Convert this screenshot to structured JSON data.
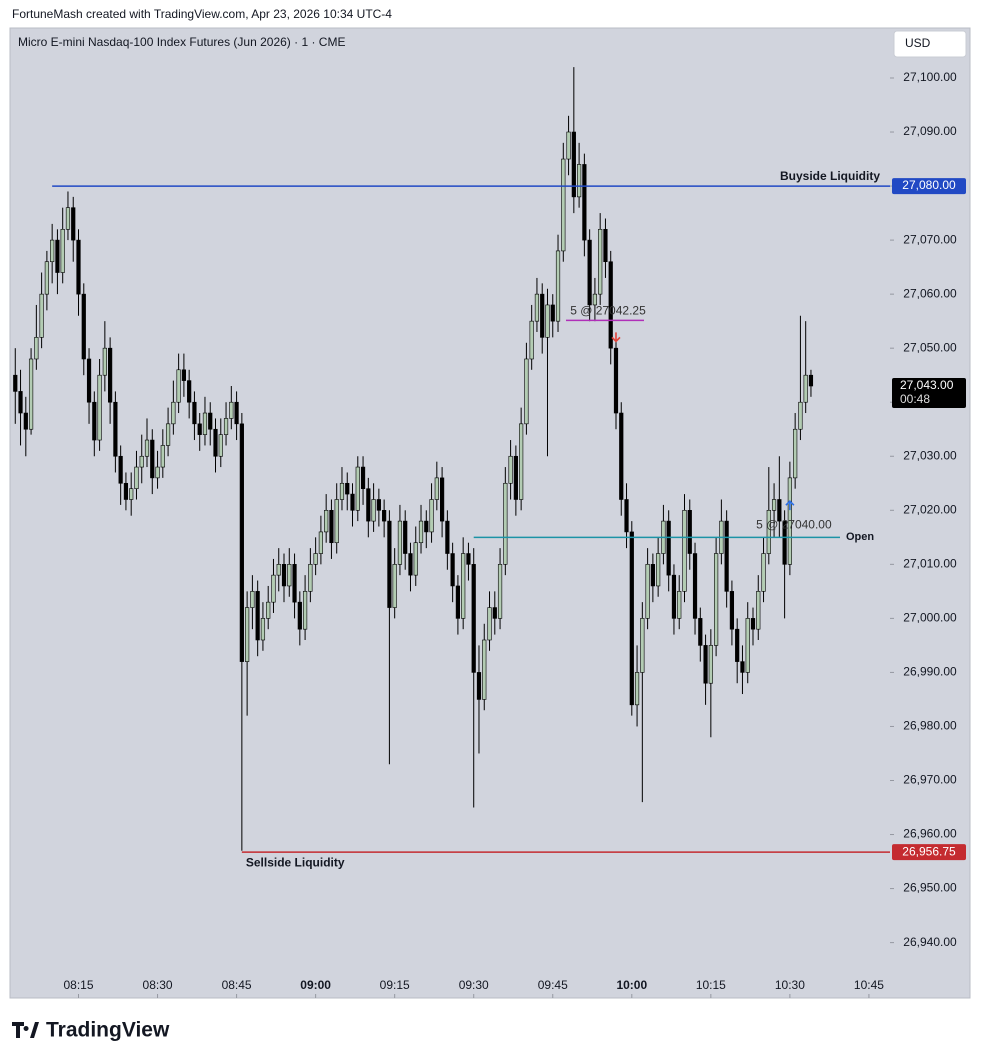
{
  "header": {
    "attribution": "FortuneMash created with TradingView.com, Apr 23, 2026 10:34 UTC-4",
    "logo": "TradingView"
  },
  "chart_data": {
    "type": "candlestick",
    "title": "Micro E-mini Nasdaq-100 Index Futures (Jun 2026) · 1 · CME",
    "currency": "USD",
    "up_color": "#b3ccb3",
    "down_color": "#000000",
    "ylim": [
      26929.75,
      27109.25
    ],
    "yticks": [
      {
        "value": 26940,
        "label": "26,940.00"
      },
      {
        "value": 26950,
        "label": "26,950.00"
      },
      {
        "value": 26960,
        "label": "26,960.00"
      },
      {
        "value": 26970,
        "label": "26,970.00"
      },
      {
        "value": 26980,
        "label": "26,980.00"
      },
      {
        "value": 26990,
        "label": "26,990.00"
      },
      {
        "value": 27000,
        "label": "27,000.00"
      },
      {
        "value": 27010,
        "label": "27,010.00"
      },
      {
        "value": 27020,
        "label": "27,020.00"
      },
      {
        "value": 27030,
        "label": "27,030.00"
      },
      {
        "value": 27040,
        "label": "27,040.00"
      },
      {
        "value": 27050,
        "label": "27,050.00"
      },
      {
        "value": 27060,
        "label": "27,060.00"
      },
      {
        "value": 27070,
        "label": "27,070.00"
      },
      {
        "value": 27080,
        "label": "27,080.00"
      },
      {
        "value": 27090,
        "label": "27,090.00"
      },
      {
        "value": 27100,
        "label": "27,100.00"
      }
    ],
    "xlim": [
      "08:02",
      "10:49"
    ],
    "xticks": [
      "08:15",
      "08:30",
      "08:45",
      "09:00",
      "09:15",
      "09:30",
      "09:45",
      "10:00",
      "10:15",
      "10:30",
      "10:45"
    ],
    "x": [
      "08:03",
      "08:04",
      "08:05",
      "08:06",
      "08:07",
      "08:08",
      "08:09",
      "08:10",
      "08:11",
      "08:12",
      "08:13",
      "08:14",
      "08:15",
      "08:16",
      "08:17",
      "08:18",
      "08:19",
      "08:20",
      "08:21",
      "08:22",
      "08:23",
      "08:24",
      "08:25",
      "08:26",
      "08:27",
      "08:28",
      "08:29",
      "08:30",
      "08:31",
      "08:32",
      "08:33",
      "08:34",
      "08:35",
      "08:36",
      "08:37",
      "08:38",
      "08:39",
      "08:40",
      "08:41",
      "08:42",
      "08:43",
      "08:44",
      "08:45",
      "08:46",
      "08:47",
      "08:48",
      "08:49",
      "08:50",
      "08:51",
      "08:52",
      "08:53",
      "08:54",
      "08:55",
      "08:56",
      "08:57",
      "08:58",
      "08:59",
      "09:00",
      "09:01",
      "09:02",
      "09:03",
      "09:04",
      "09:05",
      "09:06",
      "09:07",
      "09:08",
      "09:09",
      "09:10",
      "09:11",
      "09:12",
      "09:13",
      "09:14",
      "09:15",
      "09:16",
      "09:17",
      "09:18",
      "09:19",
      "09:20",
      "09:21",
      "09:22",
      "09:23",
      "09:24",
      "09:25",
      "09:26",
      "09:27",
      "09:28",
      "09:29",
      "09:30",
      "09:31",
      "09:32",
      "09:33",
      "09:34",
      "09:35",
      "09:36",
      "09:37",
      "09:38",
      "09:39",
      "09:40",
      "09:41",
      "09:42",
      "09:43",
      "09:44",
      "09:45",
      "09:46",
      "09:47",
      "09:48",
      "09:49",
      "09:50",
      "09:51",
      "09:52",
      "09:53",
      "09:54",
      "09:55",
      "09:56",
      "09:57",
      "09:58",
      "09:59",
      "10:00",
      "10:01",
      "10:02",
      "10:03",
      "10:04",
      "10:05",
      "10:06",
      "10:07",
      "10:08",
      "10:09",
      "10:10",
      "10:11",
      "10:12",
      "10:13",
      "10:14",
      "10:15",
      "10:16",
      "10:17",
      "10:18",
      "10:19",
      "10:20",
      "10:21",
      "10:22",
      "10:23",
      "10:24",
      "10:25",
      "10:26",
      "10:27",
      "10:28",
      "10:29",
      "10:30",
      "10:31",
      "10:32",
      "10:33",
      "10:34"
    ],
    "ohlc": [
      [
        27045,
        27050,
        27036,
        27042
      ],
      [
        27042,
        27046,
        27032,
        27038
      ],
      [
        27038,
        27041,
        27030,
        27035
      ],
      [
        27035,
        27050,
        27034,
        27048
      ],
      [
        27048,
        27058,
        27046,
        27052
      ],
      [
        27052,
        27064,
        27050,
        27060
      ],
      [
        27060,
        27068,
        27057,
        27066
      ],
      [
        27066,
        27073,
        27062,
        27070
      ],
      [
        27070,
        27072,
        27060,
        27064
      ],
      [
        27064,
        27076,
        27062,
        27072
      ],
      [
        27072,
        27079,
        27070,
        27076
      ],
      [
        27076,
        27078,
        27066,
        27070
      ],
      [
        27070,
        27072,
        27056,
        27060
      ],
      [
        27060,
        27062,
        27045,
        27048
      ],
      [
        27048,
        27050,
        27036,
        27040
      ],
      [
        27040,
        27042,
        27030,
        27033
      ],
      [
        27033,
        27048,
        27031,
        27045
      ],
      [
        27045,
        27055,
        27042,
        27050
      ],
      [
        27050,
        27052,
        27036,
        27040
      ],
      [
        27040,
        27042,
        27027,
        27030
      ],
      [
        27030,
        27032,
        27021,
        27025
      ],
      [
        27025,
        27027,
        27020,
        27022
      ],
      [
        27022,
        27027,
        27019,
        27024
      ],
      [
        27024,
        27031,
        27022,
        27028
      ],
      [
        27028,
        27034,
        27025,
        27030
      ],
      [
        27030,
        27037,
        27028,
        27033
      ],
      [
        27033,
        27035,
        27023,
        27026
      ],
      [
        27026,
        27031,
        27024,
        27028
      ],
      [
        27028,
        27035,
        27026,
        27032
      ],
      [
        27032,
        27039,
        27030,
        27036
      ],
      [
        27036,
        27044,
        27034,
        27040
      ],
      [
        27040,
        27049,
        27038,
        27046
      ],
      [
        27046,
        27049,
        27041,
        27044
      ],
      [
        27044,
        27046,
        27037,
        27040
      ],
      [
        27040,
        27042,
        27033,
        27036
      ],
      [
        27036,
        27038,
        27031,
        27034
      ],
      [
        27034,
        27041,
        27032,
        27038
      ],
      [
        27038,
        27040,
        27032,
        27035
      ],
      [
        27035,
        27037,
        27027,
        27030
      ],
      [
        27030,
        27037,
        27028,
        27034
      ],
      [
        27034,
        27040,
        27032,
        27037
      ],
      [
        27037,
        27043,
        27035,
        27040
      ],
      [
        27040,
        27042,
        27033,
        27036
      ],
      [
        27036,
        27038,
        26957,
        26992
      ],
      [
        26992,
        27005,
        26982,
        27002
      ],
      [
        27002,
        27008,
        26998,
        27005
      ],
      [
        27005,
        27007,
        26993,
        26996
      ],
      [
        26996,
        27003,
        26994,
        27000
      ],
      [
        27000,
        27006,
        26998,
        27003
      ],
      [
        27003,
        27011,
        27001,
        27008
      ],
      [
        27008,
        27013,
        27005,
        27010
      ],
      [
        27010,
        27012,
        27003,
        27006
      ],
      [
        27006,
        27013,
        27004,
        27010
      ],
      [
        27010,
        27012,
        27000,
        27003
      ],
      [
        27003,
        27005,
        26995,
        26998
      ],
      [
        26998,
        27008,
        26996,
        27005
      ],
      [
        27005,
        27013,
        27003,
        27010
      ],
      [
        27010,
        27015,
        27008,
        27012
      ],
      [
        27012,
        27019,
        27010,
        27016
      ],
      [
        27016,
        27023,
        27014,
        27020
      ],
      [
        27020,
        27022,
        27011,
        27014
      ],
      [
        27014,
        27025,
        27012,
        27022
      ],
      [
        27022,
        27028,
        27020,
        27025
      ],
      [
        27025,
        27027,
        27020,
        27023
      ],
      [
        27023,
        27025,
        27017,
        27020
      ],
      [
        27020,
        27030,
        27018,
        27028
      ],
      [
        27028,
        27030,
        27021,
        27024
      ],
      [
        27024,
        27026,
        27015,
        27018
      ],
      [
        27018,
        27025,
        27016,
        27022
      ],
      [
        27022,
        27024,
        27017,
        27020
      ],
      [
        27020,
        27022,
        27015,
        27018
      ],
      [
        27018,
        27020,
        26973,
        27002
      ],
      [
        27002,
        27013,
        27000,
        27010
      ],
      [
        27010,
        27021,
        27008,
        27018
      ],
      [
        27018,
        27020,
        27009,
        27012
      ],
      [
        27012,
        27014,
        27005,
        27008
      ],
      [
        27008,
        27017,
        27006,
        27014
      ],
      [
        27014,
        27021,
        27012,
        27018
      ],
      [
        27018,
        27020,
        27013,
        27016
      ],
      [
        27016,
        27025,
        27014,
        27022
      ],
      [
        27022,
        27029,
        27020,
        27026
      ],
      [
        27026,
        27028,
        27015,
        27018
      ],
      [
        27018,
        27020,
        27009,
        27012
      ],
      [
        27012,
        27014,
        27003,
        27006
      ],
      [
        27006,
        27008,
        26997,
        27000
      ],
      [
        27000,
        27015,
        26998,
        27012
      ],
      [
        27012,
        27014,
        27007,
        27010
      ],
      [
        27010,
        27013,
        26965,
        26990
      ],
      [
        26990,
        26995,
        26975,
        26985
      ],
      [
        26985,
        26999,
        26983,
        26996
      ],
      [
        26996,
        27005,
        26994,
        27002
      ],
      [
        27002,
        27005,
        26997,
        27000
      ],
      [
        27000,
        27013,
        26998,
        27010
      ],
      [
        27010,
        27028,
        27008,
        27025
      ],
      [
        27025,
        27033,
        27022,
        27030
      ],
      [
        27030,
        27032,
        27019,
        27022
      ],
      [
        27022,
        27039,
        27020,
        27036
      ],
      [
        27036,
        27051,
        27034,
        27048
      ],
      [
        27048,
        27058,
        27046,
        27055
      ],
      [
        27055,
        27063,
        27053,
        27060
      ],
      [
        27060,
        27062,
        27049,
        27052
      ],
      [
        27052,
        27061,
        27030,
        27058
      ],
      [
        27058,
        27060,
        27052,
        27055
      ],
      [
        27055,
        27071,
        27053,
        27068
      ],
      [
        27068,
        27088,
        27066,
        27085
      ],
      [
        27085,
        27093,
        27082,
        27090
      ],
      [
        27090,
        27102,
        27075,
        27078
      ],
      [
        27078,
        27088,
        27076,
        27084
      ],
      [
        27084,
        27086,
        27067,
        27070
      ],
      [
        27070,
        27072,
        27055,
        27058
      ],
      [
        27058,
        27063,
        27055,
        27060
      ],
      [
        27060,
        27075,
        27058,
        27072
      ],
      [
        27072,
        27074,
        27063,
        27066
      ],
      [
        27066,
        27068,
        27047,
        27050
      ],
      [
        27050,
        27052,
        27035,
        27038
      ],
      [
        27038,
        27040,
        27019,
        27022
      ],
      [
        27022,
        27025,
        27013,
        27016
      ],
      [
        27016,
        27018,
        26982,
        26984
      ],
      [
        26984,
        26995,
        26980,
        26990
      ],
      [
        26990,
        27003,
        26966,
        27000
      ],
      [
        27000,
        27013,
        26998,
        27010
      ],
      [
        27010,
        27012,
        27003,
        27006
      ],
      [
        27006,
        27015,
        27004,
        27012
      ],
      [
        27012,
        27021,
        27010,
        27018
      ],
      [
        27018,
        27020,
        27005,
        27008
      ],
      [
        27008,
        27010,
        26997,
        27000
      ],
      [
        27000,
        27008,
        26998,
        27005
      ],
      [
        27005,
        27023,
        27003,
        27020
      ],
      [
        27020,
        27022,
        27009,
        27012
      ],
      [
        27012,
        27014,
        26997,
        27000
      ],
      [
        27000,
        27002,
        26992,
        26995
      ],
      [
        26995,
        26997,
        26984,
        26988
      ],
      [
        26988,
        26998,
        26978,
        26995
      ],
      [
        26995,
        27015,
        26993,
        27012
      ],
      [
        27012,
        27022,
        27010,
        27018
      ],
      [
        27018,
        27020,
        27002,
        27005
      ],
      [
        27005,
        27007,
        26995,
        26998
      ],
      [
        26998,
        27000,
        26988,
        26992
      ],
      [
        26992,
        26995,
        26986,
        26990
      ],
      [
        26990,
        27003,
        26988,
        27000
      ],
      [
        27000,
        27002,
        26995,
        26998
      ],
      [
        26998,
        27008,
        26996,
        27005
      ],
      [
        27005,
        27015,
        27003,
        27012
      ],
      [
        27012,
        27028,
        27010,
        27020
      ],
      [
        27020,
        27025,
        27015,
        27022
      ],
      [
        27022,
        27030,
        27015,
        27018
      ],
      [
        27018,
        27020,
        27000,
        27010
      ],
      [
        27010,
        27029,
        27008,
        27026
      ],
      [
        27026,
        27038,
        27024,
        27035
      ],
      [
        27035,
        27056,
        27033,
        27040
      ],
      [
        27040,
        27055,
        27038,
        27045
      ],
      [
        27045,
        27046,
        27041,
        27043
      ]
    ],
    "levels": [
      {
        "name": "Buyside Liquidity",
        "value": 27080,
        "label": "27,080.00",
        "color": "#2149c4",
        "start": "08:10",
        "text_position": "above-right"
      },
      {
        "name": "Sellside Liquidity",
        "value": 26956.75,
        "label": "26,956.75",
        "color": "#c42b30",
        "start": "08:46",
        "text_position": "below-left"
      },
      {
        "name": "Open",
        "value": 27015,
        "color": "#1b93a6",
        "start": "09:30",
        "text_position": "end"
      }
    ],
    "trades": [
      {
        "label": "5 @ 27042.25",
        "price": 27042.25,
        "time": "09:57",
        "side": "sell",
        "color": "#b02fb8",
        "arrow_color": "#e2443b"
      },
      {
        "label": "5 @ 27040.00",
        "price": 27040,
        "time": "10:30",
        "side": "buy",
        "arrow_color": "#2a6ee8"
      }
    ],
    "last_price": {
      "value": 27043,
      "label": "27,043.00",
      "countdown": "00:48"
    }
  }
}
